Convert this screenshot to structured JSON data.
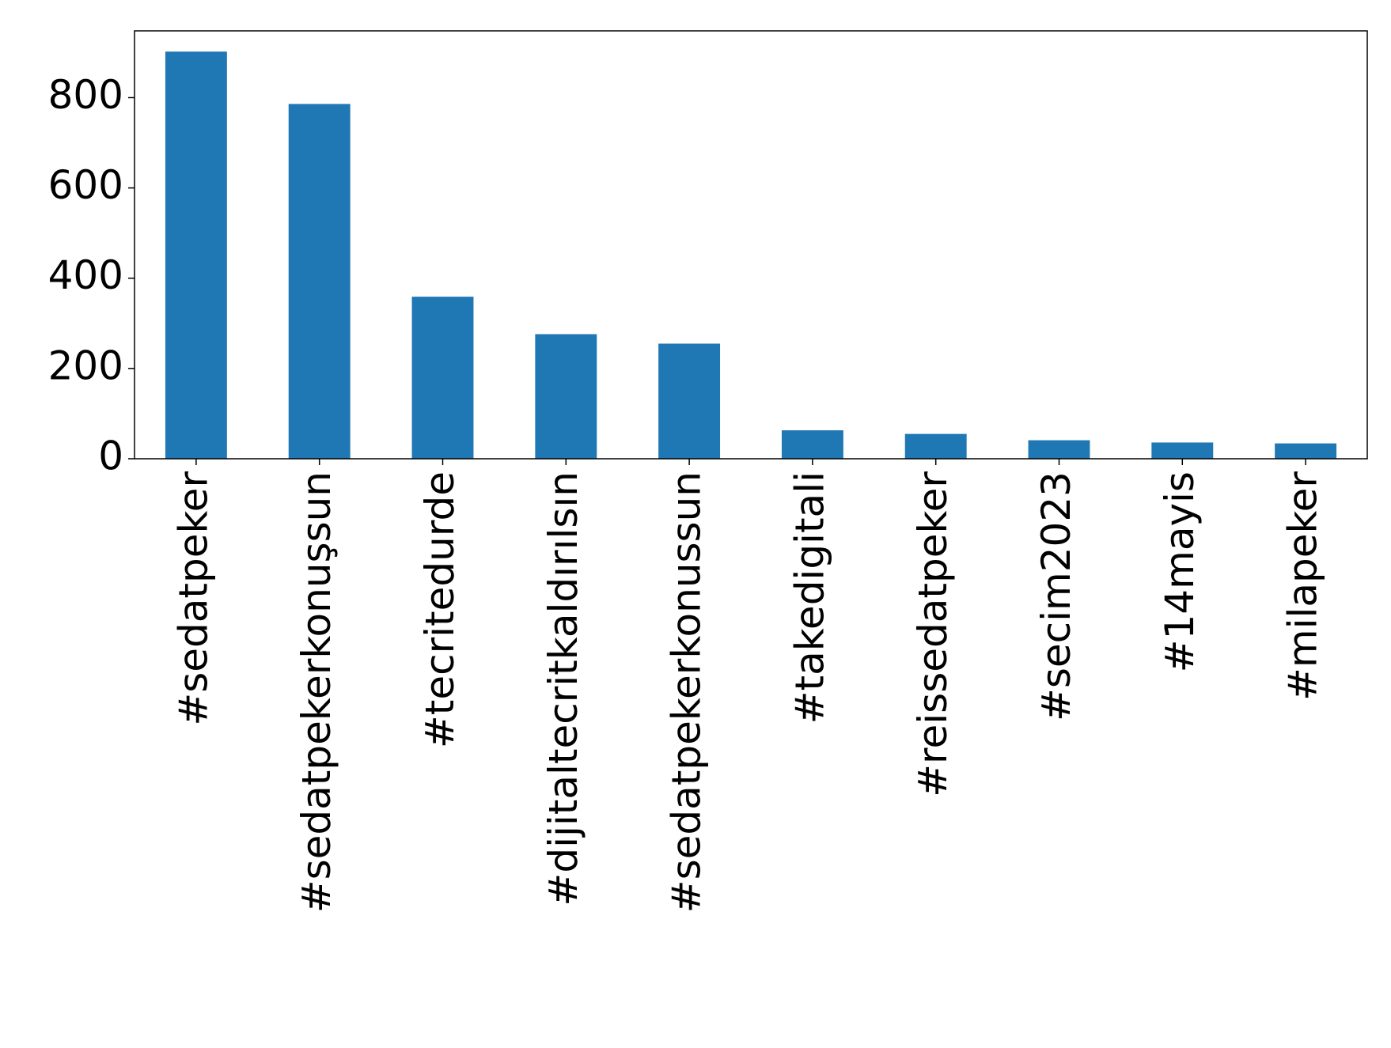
{
  "chart_data": {
    "type": "bar",
    "categories": [
      "#sedatpeker",
      "#sedatpekerkonuşsun",
      "#tecritedurde",
      "#dijitaltecritkaldırılsın",
      "#sedatpekerkonussun",
      "#takedigitali",
      "#reissedatpeker",
      "#secim2023",
      "#14mayis",
      "#milapeker"
    ],
    "values": [
      902,
      786,
      359,
      276,
      255,
      63,
      55,
      41,
      36,
      34
    ],
    "color": "#1f77b4",
    "ylim": [
      0,
      948
    ],
    "yticks": [
      0,
      200,
      400,
      600,
      800
    ],
    "grid": false
  }
}
